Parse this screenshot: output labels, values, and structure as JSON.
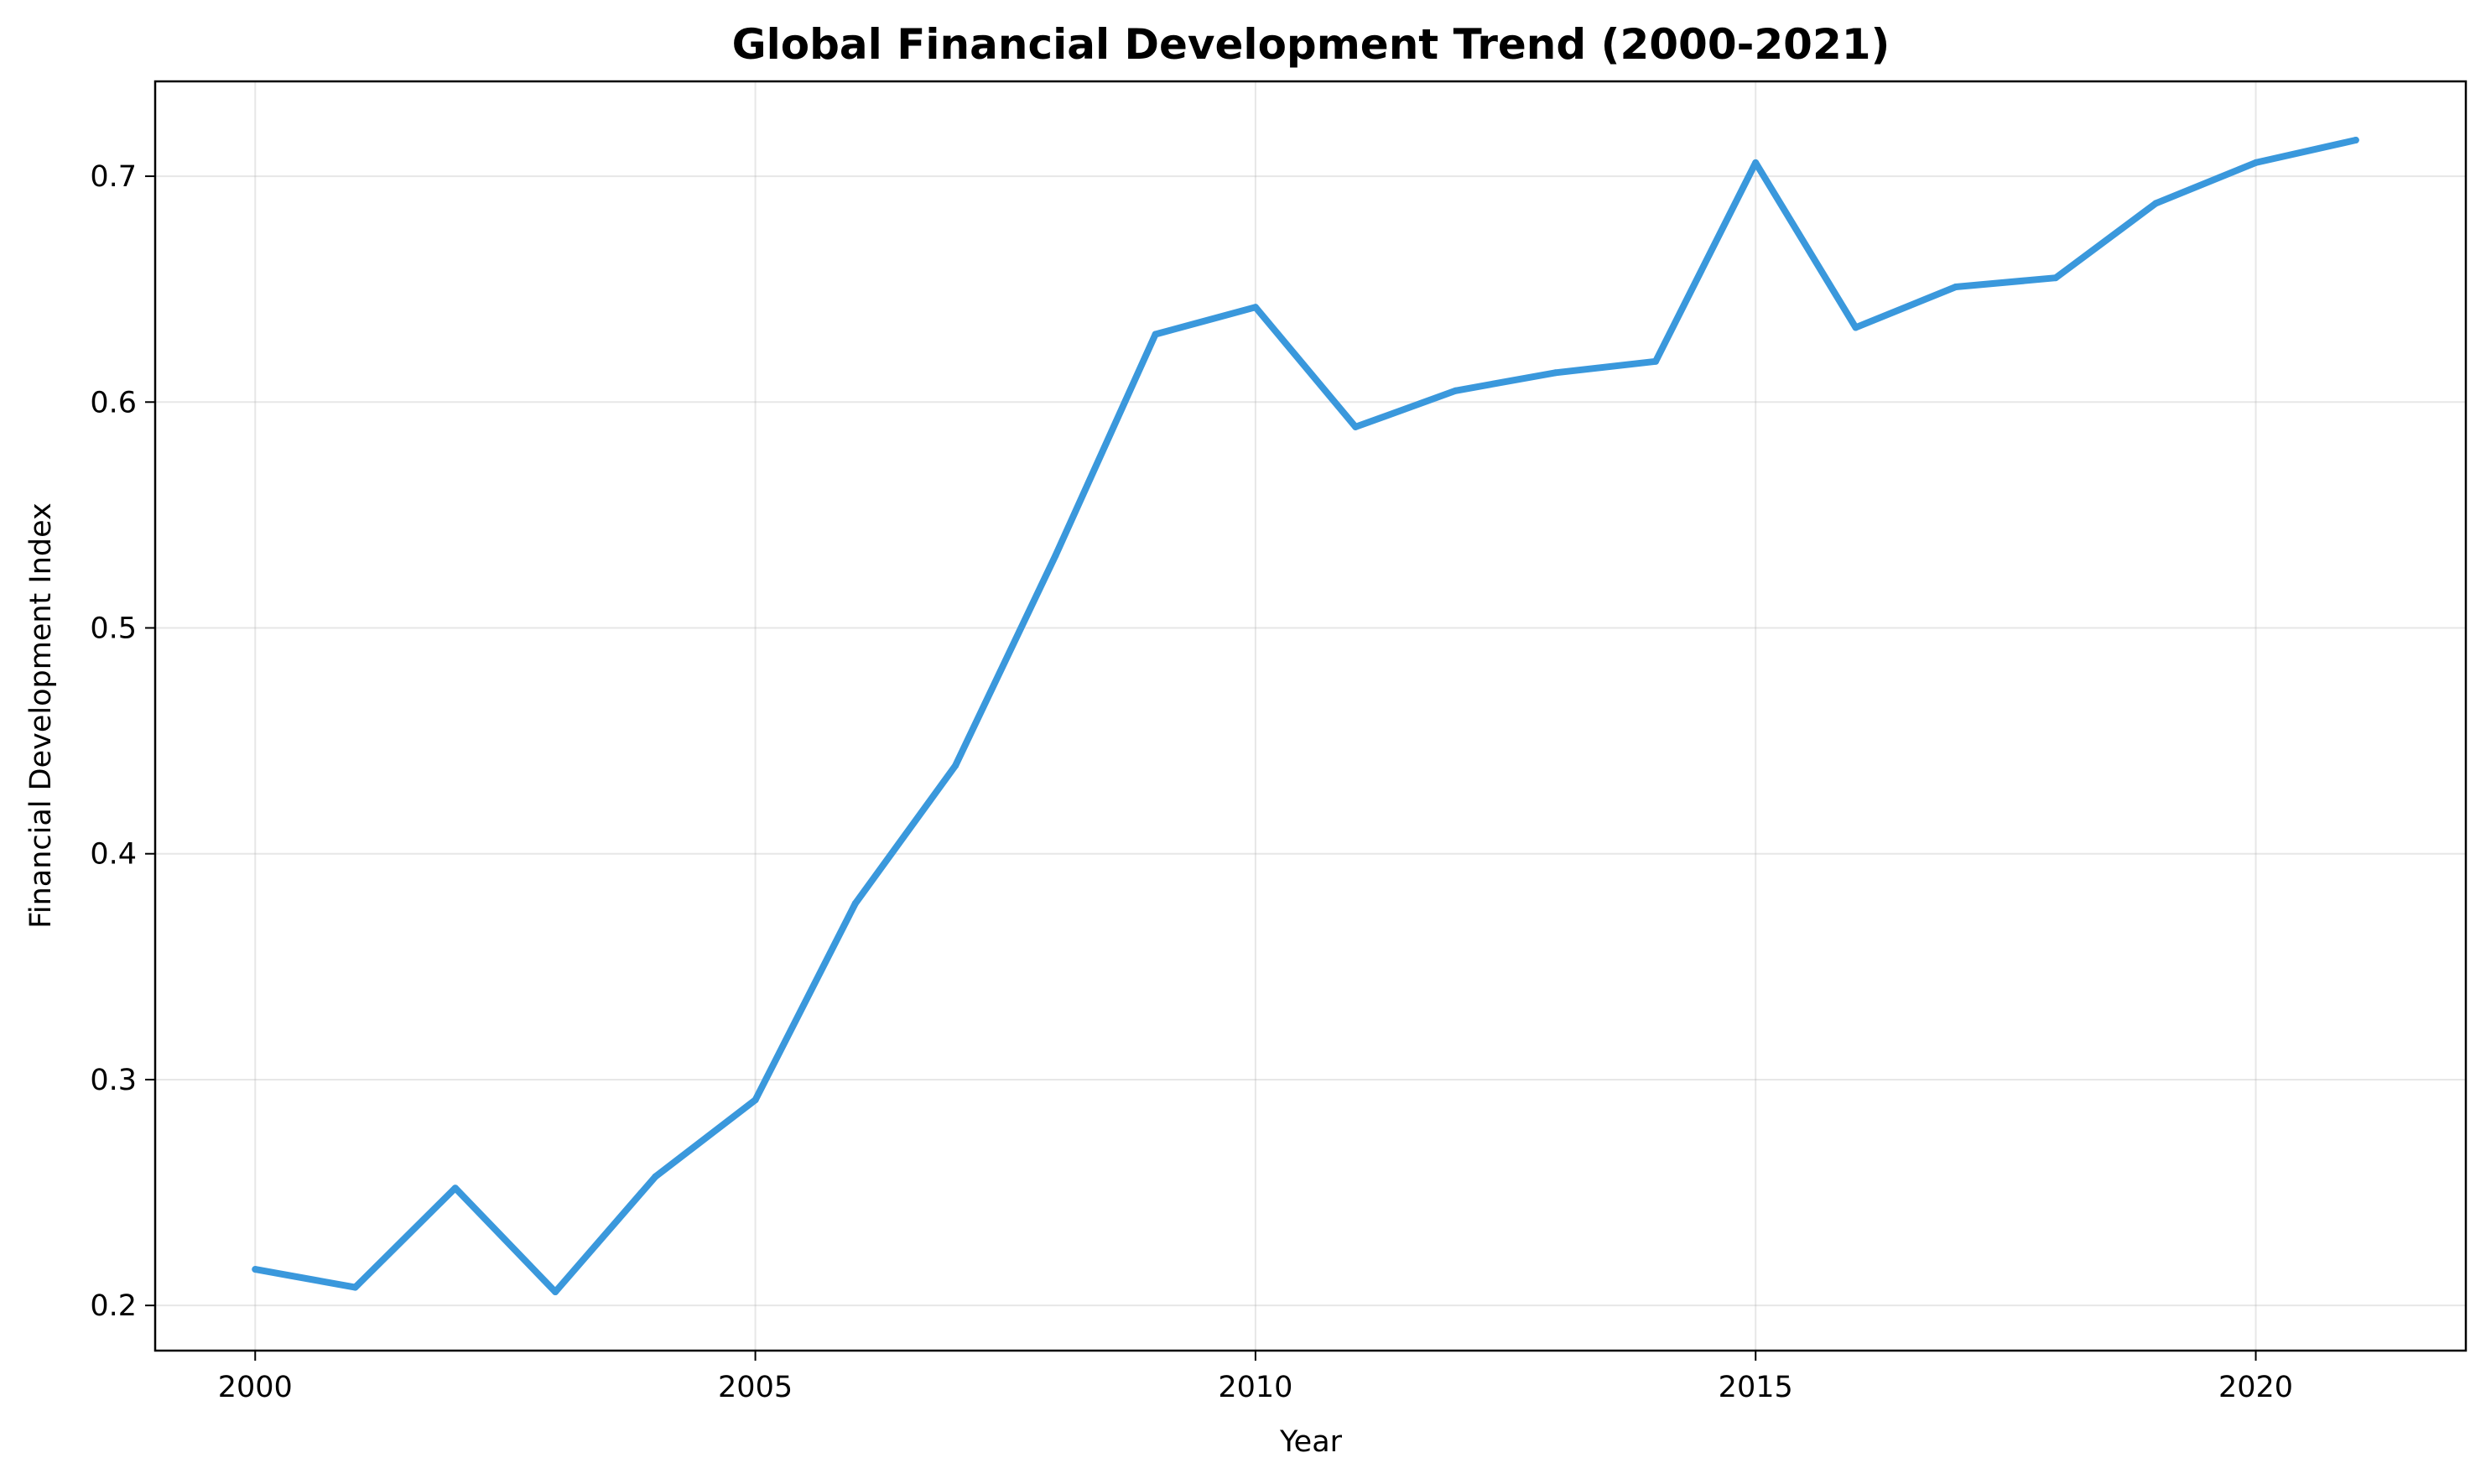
{
  "chart_data": {
    "type": "line",
    "title": "Global Financial Development Trend (2000-2021)",
    "xlabel": "Year",
    "ylabel": "Financial Development Index",
    "x": [
      2000,
      2001,
      2002,
      2003,
      2004,
      2005,
      2006,
      2007,
      2008,
      2009,
      2010,
      2011,
      2012,
      2013,
      2014,
      2015,
      2016,
      2017,
      2018,
      2019,
      2020,
      2021
    ],
    "series": [
      {
        "values": [
          0.216,
          0.208,
          0.252,
          0.206,
          0.257,
          0.291,
          0.378,
          0.439,
          0.532,
          0.63,
          0.642,
          0.589,
          0.605,
          0.613,
          0.618,
          0.706,
          0.633,
          0.651,
          0.655,
          0.688,
          0.706,
          0.716
        ],
        "color": "#3a98dc"
      }
    ],
    "xlim": [
      1999,
      2022.1
    ],
    "ylim": [
      0.18,
      0.742
    ],
    "xticks": [
      2000,
      2005,
      2010,
      2015,
      2020
    ],
    "xtick_labels": [
      "2000",
      "2005",
      "2010",
      "2015",
      "2020"
    ],
    "yticks": [
      0.2,
      0.3,
      0.4,
      0.5,
      0.6,
      0.7
    ],
    "ytick_labels": [
      "0.2",
      "0.3",
      "0.4",
      "0.5",
      "0.6",
      "0.7"
    ],
    "grid": true,
    "legend": "none"
  }
}
